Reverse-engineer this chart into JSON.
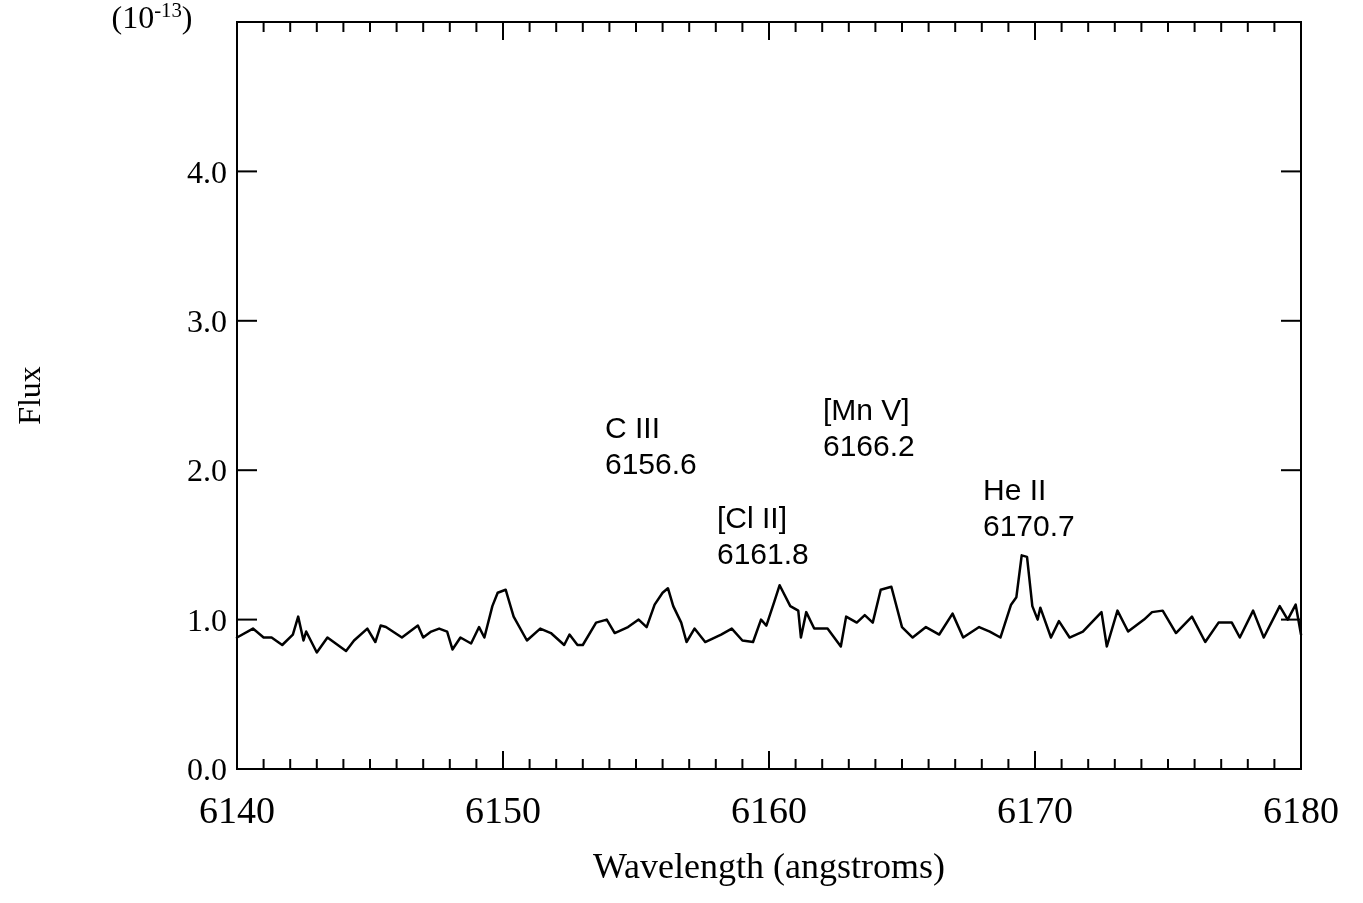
{
  "chart_data": {
    "type": "line",
    "xlabel": "Wavelength (angstroms)",
    "ylabel": "Flux",
    "annotations": [
      "(10$^{-13}$)",
      "C III\n6156.6",
      "[Cl II]\n6161.8",
      "[Mn V]\n6166.2",
      "He II\n6170.7"
    ],
    "xlim": [
      6140,
      6180
    ],
    "ylim": [
      0,
      5
    ],
    "xticks": [
      6140,
      {
        "value": 6141,
        "label": null
      },
      {
        "value": 6142,
        "label": null
      },
      {
        "value": 6143,
        "label": null
      },
      {
        "value": 6144,
        "label": null
      },
      {
        "value": 6145,
        "label": null
      },
      {
        "value": 6146,
        "label": null
      },
      {
        "value": 6147,
        "label": null
      },
      {
        "value": 6148,
        "label": null
      },
      {
        "value": 6149,
        "label": null
      },
      6150,
      {
        "value": 6151,
        "label": null
      },
      {
        "value": 6152,
        "label": null
      },
      {
        "value": 6153,
        "label": null
      },
      {
        "value": 6154,
        "label": null
      },
      {
        "value": 6155,
        "label": null
      },
      {
        "value": 6156,
        "label": null
      },
      {
        "value": 6157,
        "label": null
      },
      {
        "value": 6158,
        "label": null
      },
      {
        "value": 6159,
        "label": null
      },
      6160,
      {
        "value": 6161,
        "label": null
      },
      {
        "value": 6162,
        "label": null
      },
      {
        "value": 6163,
        "label": null
      },
      {
        "value": 6164,
        "label": null
      },
      {
        "value": 6165,
        "label": null
      },
      {
        "value": 6166,
        "label": null
      },
      {
        "value": 6167,
        "label": null
      },
      {
        "value": 6168,
        "label": null
      },
      {
        "value": 6169,
        "label": null
      },
      6170,
      {
        "value": 6171,
        "label": null
      },
      {
        "value": 6172,
        "label": null
      },
      {
        "value": 6173,
        "label": null
      },
      {
        "value": 6174,
        "label": null
      },
      {
        "value": 6175,
        "label": null
      },
      {
        "value": 6176,
        "label": null
      },
      {
        "value": 6177,
        "label": null
      },
      {
        "value": 6178,
        "label": null
      },
      {
        "value": 6179,
        "label": null
      },
      6180
    ],
    "yticks": [
      {
        "value": 0,
        "label": "0.0"
      },
      {
        "value": 1,
        "label": "1.0"
      },
      {
        "value": 2,
        "label": "2.0"
      },
      {
        "value": 3,
        "label": "3.0"
      },
      {
        "value": 4,
        "label": "4.0"
      }
    ],
    "grid": false,
    "marker": "none",
    "line_style": "solid",
    "series": [
      {
        "color": "#000000",
        "x": [
          6140.0,
          6140.6,
          6141.0,
          6141.3,
          6141.7,
          6142.1,
          6142.3,
          6142.5,
          6142.6,
          6143.0,
          6143.4,
          6144.1,
          6144.4,
          6144.9,
          6145.2,
          6145.4,
          6145.6,
          6146.2,
          6146.8,
          6147.0,
          6147.3,
          6147.6,
          6147.9,
          6148.1,
          6148.4,
          6148.8,
          6149.1,
          6149.3,
          6149.6,
          6149.8,
          6150.1,
          6150.4,
          6150.9,
          6151.4,
          6151.8,
          6152.3,
          6152.5,
          6152.8,
          6153.0,
          6153.5,
          6153.9,
          6154.2,
          6154.7,
          6155.1,
          6155.4,
          6155.7,
          6156.0,
          6156.2,
          6156.4,
          6156.7,
          6156.9,
          6157.2,
          6157.6,
          6158.2,
          6158.6,
          6159.0,
          6159.4,
          6159.7,
          6159.9,
          6160.2,
          6160.4,
          6160.8,
          6161.1,
          6161.2,
          6161.4,
          6161.7,
          6162.2,
          6162.7,
          6162.9,
          6163.3,
          6163.6,
          6163.9,
          6164.2,
          6164.6,
          6165.0,
          6165.4,
          6165.9,
          6166.3,
          6166.4,
          6166.9,
          6167.3,
          6167.9,
          6168.3,
          6168.7,
          6169.1,
          6169.3,
          6169.5,
          6169.7,
          6169.9,
          6170.1,
          6170.2,
          6170.6,
          6170.9,
          6171.3,
          6171.8,
          6172.5,
          6172.7,
          6173.1,
          6173.5,
          6174.1,
          6174.4,
          6174.8,
          6175.3,
          6175.9,
          6176.4,
          6176.9,
          6177.4,
          6177.7,
          6178.2,
          6178.6,
          6179.2,
          6179.5,
          6179.8,
          6180.0
        ],
        "values": [
          0.88,
          0.94,
          0.88,
          0.88,
          0.83,
          0.9,
          1.02,
          0.86,
          0.92,
          0.78,
          0.88,
          0.79,
          0.86,
          0.94,
          0.85,
          0.96,
          0.95,
          0.88,
          0.96,
          0.88,
          0.92,
          0.94,
          0.92,
          0.8,
          0.88,
          0.84,
          0.95,
          0.88,
          1.09,
          1.18,
          1.2,
          1.02,
          0.86,
          0.94,
          0.91,
          0.83,
          0.9,
          0.83,
          0.83,
          0.98,
          1.0,
          0.91,
          0.95,
          1.0,
          0.95,
          1.1,
          1.18,
          1.21,
          1.09,
          0.98,
          0.85,
          0.94,
          0.85,
          0.9,
          0.94,
          0.86,
          0.85,
          1.0,
          0.96,
          1.12,
          1.23,
          1.09,
          1.06,
          0.88,
          1.05,
          0.94,
          0.94,
          0.82,
          1.02,
          0.98,
          1.03,
          0.98,
          1.2,
          1.22,
          0.95,
          0.88,
          0.95,
          0.91,
          0.9,
          1.04,
          0.88,
          0.95,
          0.92,
          0.88,
          1.1,
          1.15,
          1.43,
          1.42,
          1.09,
          1.0,
          1.08,
          0.88,
          0.99,
          0.88,
          0.92,
          1.05,
          0.82,
          1.06,
          0.92,
          1.0,
          1.05,
          1.06,
          0.91,
          1.02,
          0.85,
          0.98,
          0.98,
          0.88,
          1.06,
          0.88,
          1.09,
          1.0,
          1.1,
          0.9
        ]
      }
    ]
  }
}
